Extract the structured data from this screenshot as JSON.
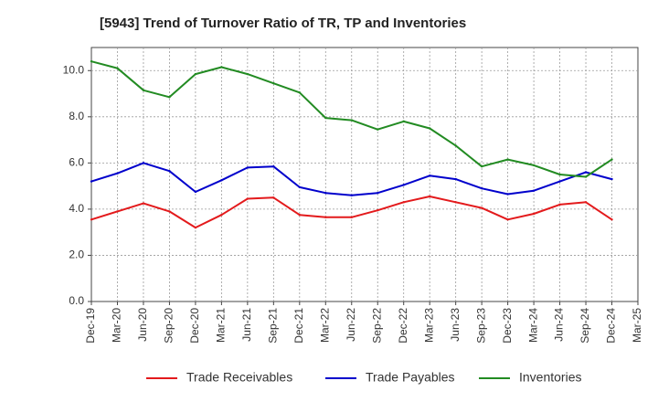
{
  "chart_data": {
    "type": "line",
    "title": "[5943]  Trend of Turnover Ratio of TR, TP and Inventories",
    "xlabel": "",
    "ylabel": "",
    "ylim": [
      0,
      11
    ],
    "yticks": [
      "0.0",
      "2.0",
      "4.0",
      "6.0",
      "8.0",
      "10.0"
    ],
    "x_tick_labels": [
      "Dec-19",
      "Mar-20",
      "Jun-20",
      "Sep-20",
      "Dec-20",
      "Mar-21",
      "Jun-21",
      "Sep-21",
      "Dec-21",
      "Mar-22",
      "Jun-22",
      "Sep-22",
      "Dec-22",
      "Mar-23",
      "Jun-23",
      "Sep-23",
      "Dec-23",
      "Mar-24",
      "Jun-24",
      "Sep-24",
      "Dec-24",
      "Mar-25"
    ],
    "x": [
      "Dec-19",
      "Mar-20",
      "Jun-20",
      "Sep-20",
      "Dec-20",
      "Mar-21",
      "Jun-21",
      "Sep-21",
      "Dec-21",
      "Mar-22",
      "Jun-22",
      "Sep-22",
      "Dec-22",
      "Mar-23",
      "Jun-23",
      "Sep-23",
      "Dec-23",
      "Mar-24",
      "Jun-24",
      "Sep-24",
      "Dec-24"
    ],
    "grid": true,
    "legend_position": "bottom",
    "series": [
      {
        "name": "Trade Receivables",
        "color": "#e31a1c",
        "values": [
          3.55,
          3.9,
          4.25,
          3.9,
          3.2,
          3.75,
          4.45,
          4.5,
          3.75,
          3.65,
          3.65,
          3.95,
          4.3,
          4.55,
          4.3,
          4.05,
          3.55,
          3.8,
          4.2,
          4.3,
          3.55
        ]
      },
      {
        "name": "Trade Payables",
        "color": "#0000cc",
        "values": [
          5.2,
          5.55,
          6.0,
          5.65,
          4.75,
          5.25,
          5.8,
          5.85,
          4.95,
          4.7,
          4.6,
          4.7,
          5.05,
          5.45,
          5.3,
          4.9,
          4.65,
          4.8,
          5.2,
          5.6,
          5.3
        ]
      },
      {
        "name": "Inventories",
        "color": "#228b22",
        "values": [
          10.4,
          10.1,
          9.15,
          8.85,
          9.85,
          10.15,
          9.85,
          9.45,
          9.05,
          7.95,
          7.85,
          7.45,
          7.8,
          7.5,
          6.75,
          5.85,
          6.15,
          5.9,
          5.5,
          5.4,
          6.15
        ]
      }
    ]
  }
}
